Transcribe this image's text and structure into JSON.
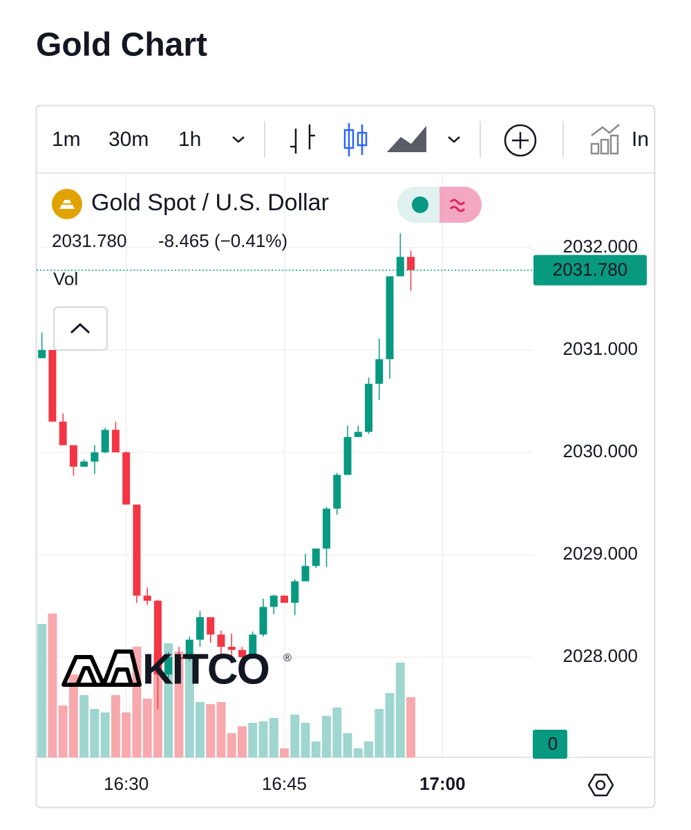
{
  "page_title": "Gold Chart",
  "toolbar": {
    "intervals": [
      "1m",
      "30m",
      "1h"
    ],
    "cut_label": "In"
  },
  "chart_data": {
    "type": "candlestick",
    "title": "Gold Spot / U.S. Dollar",
    "price_label": "2031.780",
    "change_label": "-8.465 (−0.41%)",
    "volume_label": "Vol",
    "watermark": "KITCO",
    "watermark_mark": "®",
    "up_color": "#089981",
    "down_color": "#f23645",
    "up_volume_color": "#9fd6cf",
    "down_volume_color": "#f7a9ad",
    "last_price": {
      "value": 2031.78,
      "label": "2031.780"
    },
    "x": [
      "16:22",
      "16:23",
      "16:24",
      "16:25",
      "16:26",
      "16:27",
      "16:28",
      "16:29",
      "16:30",
      "16:31",
      "16:32",
      "16:33",
      "16:34",
      "16:35",
      "16:36",
      "16:37",
      "16:38",
      "16:39",
      "16:40",
      "16:41",
      "16:42",
      "16:43",
      "16:44",
      "16:45",
      "16:46",
      "16:47",
      "16:48",
      "16:49",
      "16:50",
      "16:51",
      "16:52",
      "16:53",
      "16:54",
      "16:55",
      "16:56",
      "16:57"
    ],
    "open": [
      2030.92,
      2031.0,
      2030.3,
      2030.07,
      2029.86,
      2029.91,
      2030.0,
      2030.22,
      2030.0,
      2029.49,
      2028.6,
      2028.55,
      2027.83,
      2028.0,
      2027.98,
      2028.17,
      2028.39,
      2028.22,
      2028.1,
      2028.07,
      2028.0,
      2028.22,
      2028.49,
      2028.6,
      2028.53,
      2028.74,
      2028.89,
      2029.06,
      2029.45,
      2029.78,
      2030.15,
      2030.2,
      2030.67,
      2030.91,
      2031.72,
      2031.91
    ],
    "high": [
      2031.17,
      2031.0,
      2030.38,
      2030.07,
      2029.93,
      2030.07,
      2030.24,
      2030.3,
      2030.01,
      2029.49,
      2028.68,
      2028.56,
      2028.05,
      2028.1,
      2028.2,
      2028.45,
      2028.39,
      2028.26,
      2028.23,
      2028.1,
      2028.25,
      2028.57,
      2028.61,
      2028.6,
      2028.76,
      2029.01,
      2029.06,
      2029.47,
      2029.8,
      2030.26,
      2030.26,
      2030.73,
      2031.11,
      2031.72,
      2032.14,
      2031.97
    ],
    "low": [
      2030.92,
      2030.3,
      2030.07,
      2029.77,
      2029.86,
      2029.79,
      2029.99,
      2030.0,
      2029.49,
      2028.53,
      2028.51,
      2027.49,
      2027.8,
      2027.95,
      2027.96,
      2028.1,
      2028.14,
      2028.0,
      2027.96,
      2027.96,
      2027.98,
      2028.2,
      2028.42,
      2028.53,
      2028.41,
      2028.74,
      2028.87,
      2028.88,
      2029.39,
      2029.78,
      2030.15,
      2030.18,
      2030.51,
      2030.72,
      2031.72,
      2031.58
    ],
    "close": [
      2031.0,
      2030.3,
      2030.07,
      2029.86,
      2029.91,
      2030.0,
      2030.22,
      2030.0,
      2029.49,
      2028.6,
      2028.55,
      2027.83,
      2028.0,
      2027.98,
      2028.17,
      2028.39,
      2028.22,
      2028.1,
      2028.07,
      2028.0,
      2028.22,
      2028.49,
      2028.6,
      2028.53,
      2028.74,
      2028.89,
      2029.06,
      2029.45,
      2029.78,
      2030.15,
      2030.2,
      2030.67,
      2030.91,
      2031.72,
      2031.91,
      2031.78
    ],
    "volume": [
      193,
      208,
      75,
      120,
      90,
      70,
      65,
      90,
      65,
      160,
      85,
      150,
      165,
      153,
      150,
      80,
      77,
      80,
      35,
      45,
      50,
      52,
      57,
      13,
      62,
      50,
      23,
      60,
      72,
      35,
      13,
      23,
      70,
      93,
      137,
      87
    ],
    "xlim": [
      "16:21:30",
      "17:08:30"
    ],
    "xticks": [
      "16:30",
      "16:45",
      "17:00"
    ],
    "ylim": [
      2027.02,
      2032.73
    ],
    "yticks": [
      {
        "value": 2028,
        "label": "2028.000"
      },
      {
        "value": 2029,
        "label": "2029.000"
      },
      {
        "value": 2030,
        "label": "2030.000"
      },
      {
        "value": 2031,
        "label": "2031.000"
      },
      {
        "value": 2032,
        "label": "2032.000"
      }
    ],
    "vlim": [
      0,
      250
    ],
    "vticks": [
      0
    ],
    "grid": true
  }
}
